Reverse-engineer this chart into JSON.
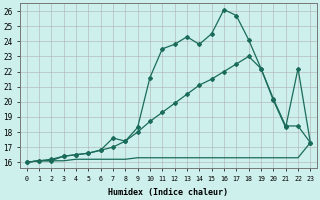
{
  "xlabel": "Humidex (Indice chaleur)",
  "bg_color": "#cdf0ec",
  "grid_color": "#b0b0b0",
  "line_color": "#1a6b5a",
  "xlim": [
    -0.5,
    23.5
  ],
  "ylim": [
    15.6,
    26.5
  ],
  "xticks": [
    0,
    1,
    2,
    3,
    4,
    5,
    6,
    7,
    8,
    9,
    10,
    11,
    12,
    13,
    14,
    15,
    16,
    17,
    18,
    19,
    20,
    21,
    22,
    23
  ],
  "yticks": [
    16,
    17,
    18,
    19,
    20,
    21,
    22,
    23,
    24,
    25,
    26
  ],
  "line1_x": [
    0,
    1,
    2,
    3,
    4,
    5,
    6,
    7,
    8,
    9,
    10,
    11,
    12,
    13,
    14,
    15,
    16,
    17,
    18,
    19,
    20,
    21,
    22,
    23
  ],
  "line1_y": [
    16.0,
    16.1,
    16.1,
    16.1,
    16.2,
    16.2,
    16.2,
    16.2,
    16.2,
    16.3,
    16.3,
    16.3,
    16.3,
    16.3,
    16.3,
    16.3,
    16.3,
    16.3,
    16.3,
    16.3,
    16.3,
    16.3,
    16.3,
    17.3
  ],
  "line2_x": [
    0,
    1,
    2,
    3,
    4,
    5,
    6,
    7,
    8,
    9,
    10,
    11,
    12,
    13,
    14,
    15,
    16,
    17,
    18,
    19,
    20,
    21,
    22,
    23
  ],
  "line2_y": [
    16.0,
    16.1,
    16.2,
    16.4,
    16.5,
    16.6,
    16.8,
    17.0,
    17.4,
    18.0,
    18.7,
    19.3,
    19.9,
    20.5,
    21.1,
    21.5,
    22.0,
    22.5,
    23.0,
    22.2,
    20.2,
    18.4,
    18.4,
    17.3
  ],
  "line3_x": [
    0,
    1,
    2,
    3,
    4,
    5,
    6,
    7,
    8,
    9,
    10,
    11,
    12,
    13,
    14,
    15,
    16,
    17,
    18,
    19,
    20,
    21,
    22,
    23
  ],
  "line3_y": [
    16.0,
    16.1,
    16.1,
    16.4,
    16.5,
    16.6,
    16.8,
    17.6,
    17.4,
    18.3,
    21.6,
    23.5,
    23.8,
    24.3,
    23.8,
    24.5,
    26.1,
    25.7,
    24.1,
    22.2,
    20.1,
    18.3,
    22.2,
    17.3
  ]
}
